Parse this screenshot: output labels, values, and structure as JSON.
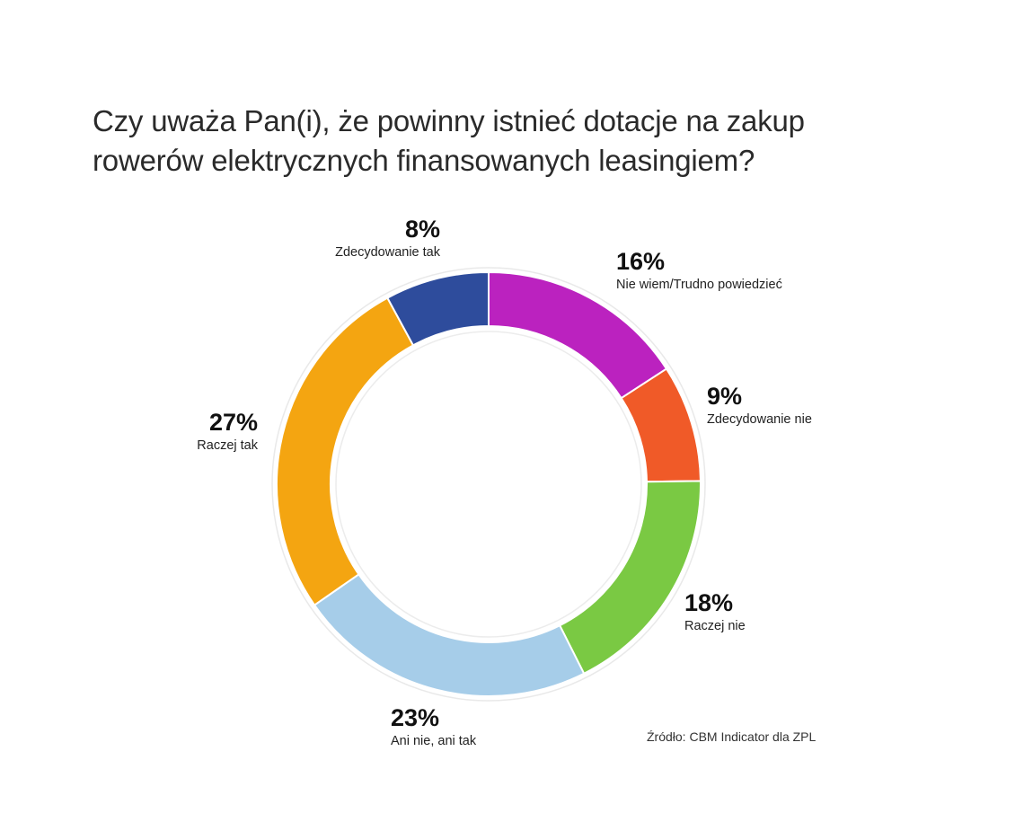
{
  "title": "Czy uważa Pan(i), że powinny istnieć dotacje na zakup rowerów elektrycznych finansowanych leasingiem?",
  "source": "Źródło: CBM Indicator dla ZPL",
  "labels": [
    {
      "pct": "16%",
      "name": "Nie wiem/Trudno powiedzieć"
    },
    {
      "pct": "9%",
      "name": "Zdecydowanie nie"
    },
    {
      "pct": "18%",
      "name": "Raczej nie"
    },
    {
      "pct": "23%",
      "name": "Ani nie, ani tak"
    },
    {
      "pct": "27%",
      "name": "Raczej tak"
    },
    {
      "pct": "8%",
      "name": "Zdecydowanie tak"
    }
  ],
  "chart_data": {
    "type": "pie",
    "variant": "donut",
    "title": "Czy uważa Pan(i), że powinny istnieć dotacje na zakup rowerów elektrycznych finansowanych leasingiem?",
    "categories": [
      "Nie wiem/Trudno powiedzieć",
      "Zdecydowanie nie",
      "Raczej nie",
      "Ani nie, ani tak",
      "Raczej tak",
      "Zdecydowanie tak"
    ],
    "values": [
      16,
      9,
      18,
      23,
      27,
      8
    ],
    "unit": "%",
    "colors": [
      "#bb22bf",
      "#f05a28",
      "#7ac943",
      "#a6cde9",
      "#f4a511",
      "#2e4c9c"
    ],
    "start_angle": "12 o'clock, clockwise",
    "legend": "none (direct labels)",
    "source": "Źródło: CBM Indicator dla ZPL"
  }
}
